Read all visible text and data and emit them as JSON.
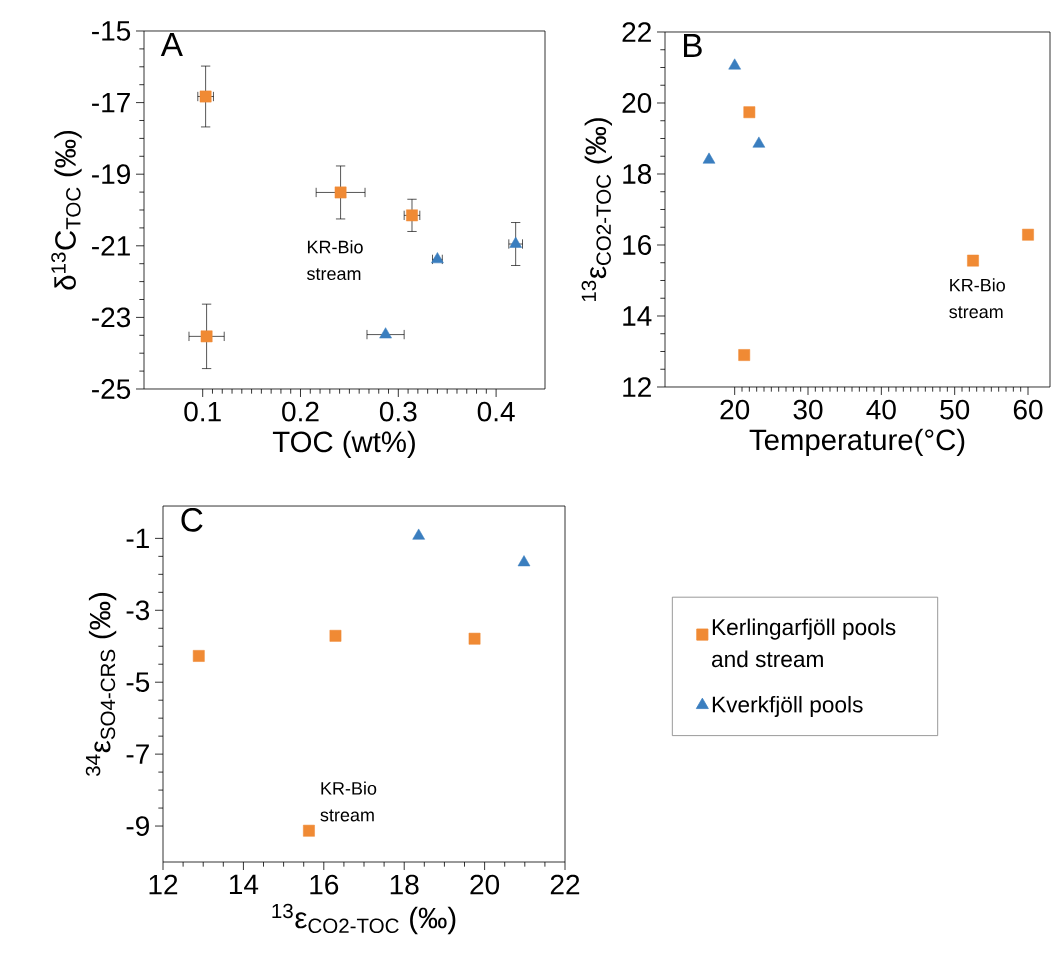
{
  "chart_data": [
    {
      "type": "scatter",
      "title": "A",
      "xlabel": "TOC (wt%)",
      "ylabel": "δ$^{13}$C$_{TOC}$ (‰)",
      "xlim": [
        0.04,
        0.45
      ],
      "ylim": [
        -25,
        -15
      ],
      "xticks": [
        0.1,
        0.2,
        0.3,
        0.4
      ],
      "yticks": [
        -25,
        -23,
        -21,
        -19,
        -17,
        -15
      ],
      "annotations": [
        "KR-Bio stream"
      ],
      "series": [
        {
          "color": "#f08a34",
          "marker": "square",
          "x": [
            0.103,
            0.241,
            0.314,
            0.104
          ],
          "values": [
            -16.83,
            -19.51,
            -20.15,
            -23.53
          ],
          "errors": [
            0.85,
            0.74,
            0.45,
            0.9
          ],
          "xerrors": [
            0.008,
            0.025,
            0.008,
            0.018
          ]
        },
        {
          "color": "#3a7ebf",
          "marker": "triangle",
          "x": [
            0.287,
            0.34,
            0.42
          ],
          "values": [
            -23.48,
            -21.38,
            -20.95
          ],
          "errors": [
            null,
            null,
            0.6
          ],
          "xerrors": [
            0.019,
            0.005,
            0.007
          ]
        }
      ]
    },
    {
      "type": "scatter",
      "title": "B",
      "xlabel": "Temperature(°C)",
      "ylabel": "$^{13}$ε$_{CO2-TOC}$ (‰)",
      "xlim": [
        10.5,
        63
      ],
      "ylim": [
        12,
        22
      ],
      "xticks": [
        20,
        30,
        40,
        50,
        60
      ],
      "yticks": [
        12,
        14,
        16,
        18,
        20,
        22
      ],
      "annotations": [
        "KR-Bio stream"
      ],
      "series": [
        {
          "color": "#f08a34",
          "marker": "square",
          "x": [
            21.3,
            22.0,
            52.5,
            60.0
          ],
          "values": [
            12.9,
            19.74,
            15.56,
            16.29
          ]
        },
        {
          "color": "#3a7ebf",
          "marker": "triangle",
          "x": [
            16.5,
            20.0,
            23.3
          ],
          "values": [
            18.4,
            21.05,
            18.85
          ]
        }
      ]
    },
    {
      "type": "scatter",
      "title": "C",
      "xlabel": "$^{13}$ε$_{CO2-TOC}$ (‰)",
      "ylabel": "$^{34}$ε$_{SO4-CRS}$ (‰)",
      "xlim": [
        12,
        22
      ],
      "ylim": [
        -10,
        -0.1
      ],
      "xticks": [
        12,
        14,
        16,
        18,
        20,
        22
      ],
      "yticks": [
        -9,
        -7,
        -5,
        -3,
        -1
      ],
      "legend": "right",
      "annotations": [
        "KR-Bio stream"
      ],
      "series": [
        {
          "name": "Kerlingarfjöll pools and stream",
          "color": "#f08a34",
          "marker": "square",
          "x": [
            12.89,
            16.29,
            19.75,
            15.63
          ],
          "values": [
            -4.27,
            -3.71,
            -3.79,
            -9.13
          ]
        },
        {
          "name": "Kverkfjöll pools",
          "color": "#3a7ebf",
          "marker": "triangle",
          "x": [
            18.36,
            20.98
          ],
          "values": [
            -0.93,
            -1.67
          ]
        }
      ]
    }
  ]
}
